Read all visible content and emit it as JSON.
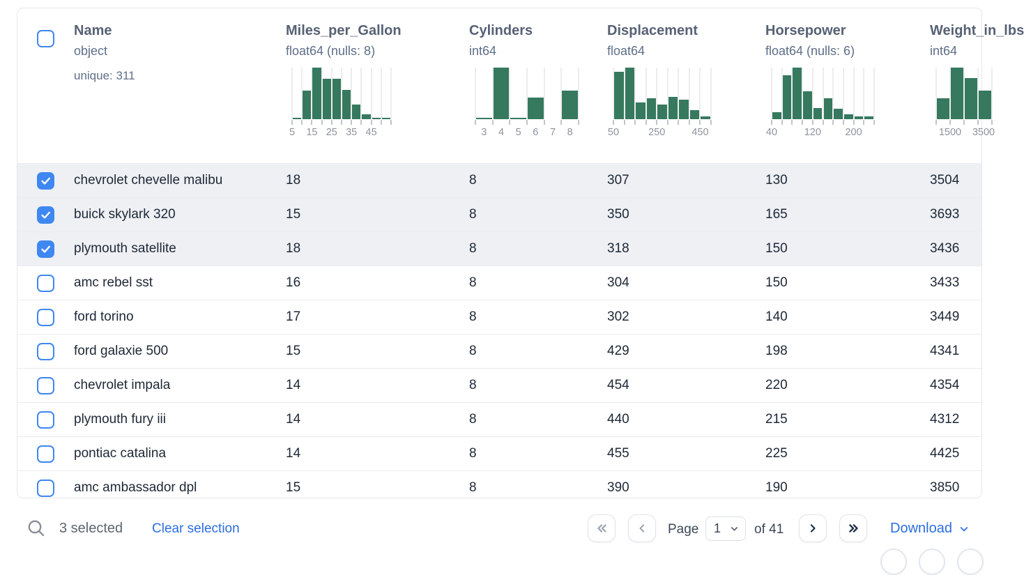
{
  "table": {
    "columns": [
      {
        "key": "name",
        "label": "Name",
        "dtype": "object",
        "meta": "unique: 311"
      },
      {
        "key": "mpg",
        "label": "Miles_per_Gallon",
        "dtype": "float64 (nulls: 8)"
      },
      {
        "key": "cyl",
        "label": "Cylinders",
        "dtype": "int64"
      },
      {
        "key": "disp",
        "label": "Displacement",
        "dtype": "float64"
      },
      {
        "key": "hp",
        "label": "Horsepower",
        "dtype": "float64 (nulls: 6)"
      },
      {
        "key": "weight",
        "label": "Weight_in_lbs",
        "dtype": "int64"
      }
    ],
    "rows": [
      {
        "selected": true,
        "name": "chevrolet chevelle malibu",
        "mpg": "18",
        "cyl": "8",
        "disp": "307",
        "hp": "130",
        "weight": "3504"
      },
      {
        "selected": true,
        "name": "buick skylark 320",
        "mpg": "15",
        "cyl": "8",
        "disp": "350",
        "hp": "165",
        "weight": "3693"
      },
      {
        "selected": true,
        "name": "plymouth satellite",
        "mpg": "18",
        "cyl": "8",
        "disp": "318",
        "hp": "150",
        "weight": "3436"
      },
      {
        "selected": false,
        "name": "amc rebel sst",
        "mpg": "16",
        "cyl": "8",
        "disp": "304",
        "hp": "150",
        "weight": "3433"
      },
      {
        "selected": false,
        "name": "ford torino",
        "mpg": "17",
        "cyl": "8",
        "disp": "302",
        "hp": "140",
        "weight": "3449"
      },
      {
        "selected": false,
        "name": "ford galaxie 500",
        "mpg": "15",
        "cyl": "8",
        "disp": "429",
        "hp": "198",
        "weight": "4341"
      },
      {
        "selected": false,
        "name": "chevrolet impala",
        "mpg": "14",
        "cyl": "8",
        "disp": "454",
        "hp": "220",
        "weight": "4354"
      },
      {
        "selected": false,
        "name": "plymouth fury iii",
        "mpg": "14",
        "cyl": "8",
        "disp": "440",
        "hp": "215",
        "weight": "4312"
      },
      {
        "selected": false,
        "name": "pontiac catalina",
        "mpg": "14",
        "cyl": "8",
        "disp": "455",
        "hp": "225",
        "weight": "4425"
      },
      {
        "selected": false,
        "name": "amc ambassador dpl",
        "mpg": "15",
        "cyl": "8",
        "disp": "390",
        "hp": "190",
        "weight": "3850"
      }
    ]
  },
  "chart_data": [
    {
      "type": "histogram",
      "column": "Miles_per_Gallon",
      "bins": 10,
      "bin_heights_pct": [
        3,
        55,
        100,
        79,
        78,
        57,
        28,
        10,
        2,
        2
      ],
      "label_mode": "boundary",
      "labels": [
        {
          "text": "5",
          "pos": 0
        },
        {
          "text": "15",
          "pos": 2
        },
        {
          "text": "25",
          "pos": 4
        },
        {
          "text": "35",
          "pos": 6
        },
        {
          "text": "45",
          "pos": 8
        }
      ]
    },
    {
      "type": "histogram",
      "column": "Cylinders",
      "bins": 6,
      "bin_heights_pct": [
        3,
        100,
        2,
        42,
        0,
        55
      ],
      "label_mode": "center",
      "labels": [
        {
          "text": "3",
          "pos": 0
        },
        {
          "text": "4",
          "pos": 1
        },
        {
          "text": "5",
          "pos": 2
        },
        {
          "text": "6",
          "pos": 3
        },
        {
          "text": "7",
          "pos": 4
        },
        {
          "text": "8",
          "pos": 5
        }
      ]
    },
    {
      "type": "histogram",
      "column": "Displacement",
      "bins": 9,
      "bin_heights_pct": [
        92,
        100,
        33,
        40,
        28,
        43,
        38,
        17,
        5
      ],
      "label_mode": "boundary",
      "labels": [
        {
          "text": "50",
          "pos": 0
        },
        {
          "text": "250",
          "pos": 4
        },
        {
          "text": "450",
          "pos": 8
        }
      ]
    },
    {
      "type": "histogram",
      "column": "Horsepower",
      "bins": 10,
      "bin_heights_pct": [
        14,
        85,
        100,
        54,
        22,
        40,
        20,
        10,
        6,
        5
      ],
      "label_mode": "boundary",
      "labels": [
        {
          "text": "40",
          "pos": 0
        },
        {
          "text": "120",
          "pos": 4
        },
        {
          "text": "200",
          "pos": 8
        }
      ]
    },
    {
      "type": "histogram",
      "column": "Weight_in_lbs",
      "bins": 4,
      "clipped": true,
      "bin_heights_pct": [
        40,
        100,
        80,
        55
      ],
      "label_mode": "boundary",
      "labels": [
        {
          "text": "1500",
          "pos": 1
        },
        {
          "text": "3500",
          "pos": 3.4
        }
      ]
    }
  ],
  "footer": {
    "selected_count_label": "3 selected",
    "clear_selection_label": "Clear selection",
    "page_label": "Page",
    "page_value": "1",
    "of_label": "of 41",
    "download_label": "Download"
  },
  "colors": {
    "accent_blue": "#3f87f1",
    "link_blue": "#2b6de0",
    "histogram_green": "#36795f",
    "selected_row_bg": "#eef0f4",
    "header_slate": "#576175",
    "row_text": "#1e2736"
  }
}
